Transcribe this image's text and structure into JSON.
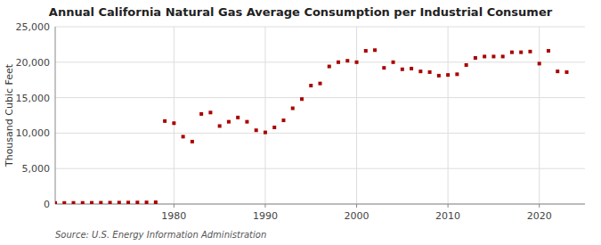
{
  "chart_data": {
    "type": "scatter",
    "title": "Annual California Natural Gas Average Consumption per Industrial Consumer",
    "ylabel": "Thousand Cubic Feet",
    "source": "Source: U.S. Energy Information Administration",
    "color": "#aa0000",
    "marker": "square",
    "grid": true,
    "xlim": [
      1967,
      2025
    ],
    "xticks": [
      1980,
      1990,
      2000,
      2010,
      2020
    ],
    "ylim": [
      0,
      25000
    ],
    "yticks": [
      0,
      {
        "value": 5000,
        "label": "5,000"
      },
      {
        "value": 10000,
        "label": "10,000"
      },
      {
        "value": 15000,
        "label": "15,000"
      },
      {
        "value": 20000,
        "label": "20,000"
      },
      {
        "value": 25000,
        "label": "25,000"
      }
    ],
    "x": [
      1967,
      1968,
      1969,
      1970,
      1971,
      1972,
      1973,
      1974,
      1975,
      1976,
      1977,
      1978,
      1979,
      1980,
      1981,
      1982,
      1983,
      1984,
      1985,
      1986,
      1987,
      1988,
      1989,
      1990,
      1991,
      1992,
      1993,
      1994,
      1995,
      1996,
      1997,
      1998,
      1999,
      2000,
      2001,
      2002,
      2003,
      2004,
      2005,
      2006,
      2007,
      2008,
      2009,
      2010,
      2011,
      2012,
      2013,
      2014,
      2015,
      2016,
      2017,
      2018,
      2019,
      2020,
      2021,
      2022,
      2023
    ],
    "values": [
      150,
      150,
      160,
      160,
      170,
      180,
      190,
      200,
      210,
      220,
      230,
      250,
      11700,
      11400,
      9500,
      8800,
      12700,
      12900,
      11000,
      11600,
      12200,
      11600,
      10400,
      10100,
      10800,
      11800,
      13500,
      14800,
      16700,
      17000,
      19400,
      20000,
      20200,
      20000,
      21600,
      21700,
      19200,
      20000,
      19000,
      19100,
      18700,
      18600,
      18100,
      18200,
      18300,
      19600,
      20600,
      20800,
      20800,
      20800,
      21400,
      21400,
      21500,
      19800,
      21600,
      18700,
      18600
    ]
  }
}
